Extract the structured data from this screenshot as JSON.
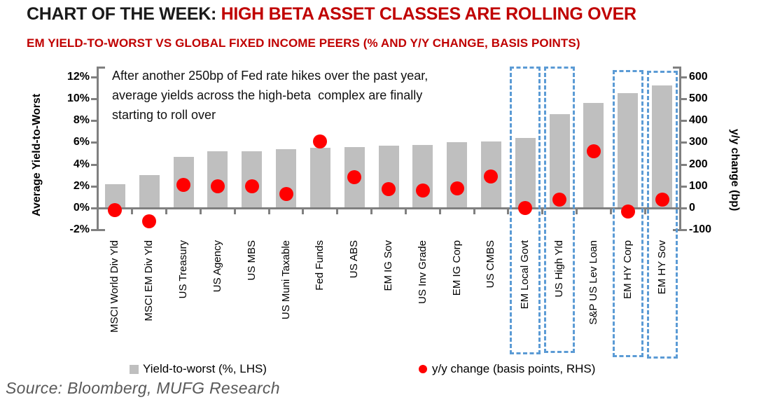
{
  "header": {
    "title_prefix": "CHART OF THE WEEK: ",
    "title_highlight": "HIGH BETA ASSET CLASSES ARE ROLLING OVER",
    "subtitle": "EM YIELD-TO-WORST VS GLOBAL FIXED INCOME PEERS (% AND Y/Y CHANGE, BASIS POINTS)"
  },
  "annotation": {
    "lines": [
      "After another 250bp of Fed rate hikes over the past year,",
      "average yields across the high-beta  complex are finally",
      "starting to roll over"
    ]
  },
  "chart_data": {
    "type": "bar",
    "categories": [
      "MSCI World Div Yld",
      "MSCI EM Div Yld",
      "US Treasury",
      "US Agency",
      "US MBS",
      "US Muni Taxable",
      "Fed Funds",
      "US ABS",
      "EM IG Sov",
      "US Inv Grade",
      "EM IG Corp",
      "US CMBS",
      "EM Local Govt",
      "US High Yld",
      "S&P US Lev Loan",
      "EM HY Corp",
      "EM HY Sov"
    ],
    "series": [
      {
        "name": "Yield-to-worst (%, LHS)",
        "type": "bar",
        "axis": "left",
        "values": [
          2.2,
          3.0,
          4.7,
          5.2,
          5.2,
          5.4,
          5.5,
          5.6,
          5.7,
          5.8,
          6.0,
          6.1,
          6.4,
          8.6,
          9.6,
          10.5,
          11.2
        ]
      },
      {
        "name": "y/y change (basis points, RHS)",
        "type": "scatter",
        "axis": "right",
        "values": [
          -10,
          -60,
          105,
          100,
          100,
          65,
          305,
          140,
          85,
          80,
          90,
          145,
          0,
          40,
          260,
          -15,
          40
        ]
      }
    ],
    "highlighted_categories": [
      "EM Local Govt",
      "US High Yld",
      "EM HY Corp",
      "EM HY Sov"
    ],
    "left_axis": {
      "label": "Average Yield-to-Worst",
      "ticks": [
        "12%",
        "10%",
        "8%",
        "6%",
        "4%",
        "2%",
        "0%",
        "-2%"
      ],
      "min": -2,
      "max": 12,
      "grid": false
    },
    "right_axis": {
      "label": "y/y change (bp)",
      "ticks": [
        "600",
        "500",
        "400",
        "300",
        "200",
        "100",
        "0",
        "-100"
      ],
      "min": -100,
      "max": 600,
      "grid": false
    },
    "legend": [
      {
        "marker": "square",
        "color": "#BFBFBF",
        "label": "Yield-to-worst (%, LHS)"
      },
      {
        "marker": "circle",
        "color": "#FF0000",
        "label": "y/y change (basis points, RHS)"
      }
    ],
    "legend_position": "bottom"
  },
  "source": "Source: Bloomberg, MUFG Research",
  "colors": {
    "bar": "#BFBFBF",
    "dot": "#FF0000",
    "accent_red": "#C00000",
    "box_blue": "#5B9BD5",
    "axis_gray": "#808080",
    "source_gray": "#595959"
  }
}
